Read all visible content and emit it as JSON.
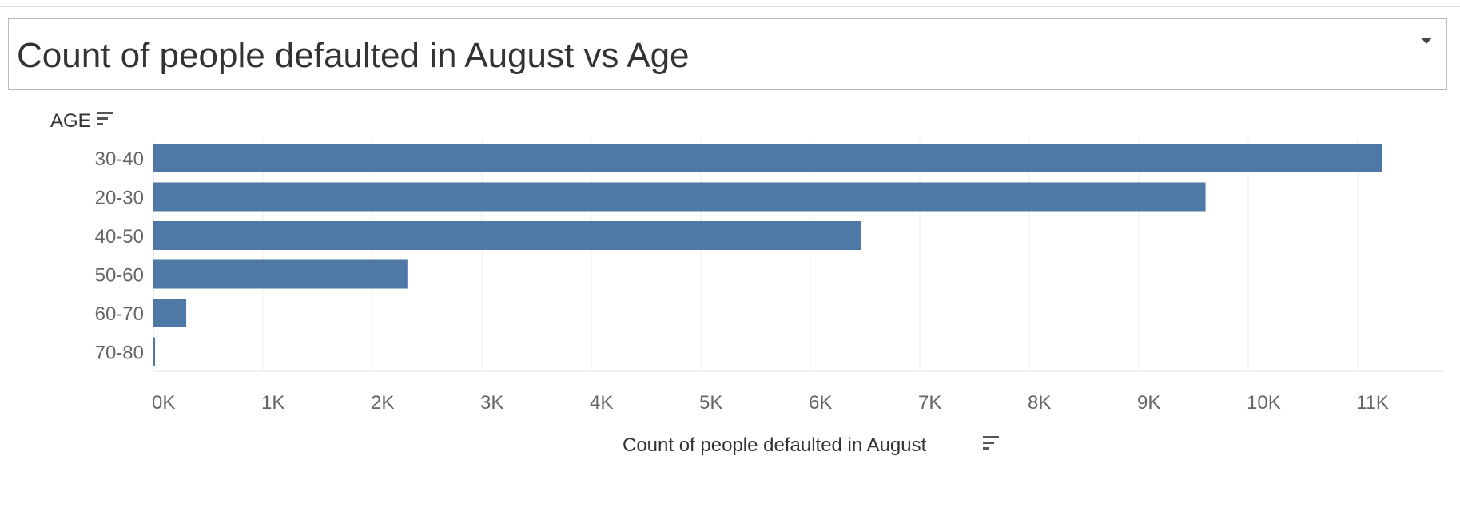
{
  "chart_data": {
    "type": "bar",
    "orientation": "horizontal",
    "title": "Count of people defaulted in August vs Age",
    "ylabel": "AGE",
    "xlabel": "Count of people defaulted in August",
    "categories": [
      "30-40",
      "20-30",
      "40-50",
      "50-60",
      "60-70",
      "70-80"
    ],
    "values": [
      11220,
      9610,
      6460,
      2320,
      300,
      15
    ],
    "xticks": [
      "0K",
      "1K",
      "2K",
      "3K",
      "4K",
      "5K",
      "6K",
      "7K",
      "8K",
      "9K",
      "10K",
      "11K"
    ],
    "xlim": [
      0,
      11800
    ],
    "grid": true,
    "bar_color": "#4e79a7"
  },
  "icons": {
    "dropdown": "chevron-down-icon",
    "sort": "sort-icon"
  }
}
